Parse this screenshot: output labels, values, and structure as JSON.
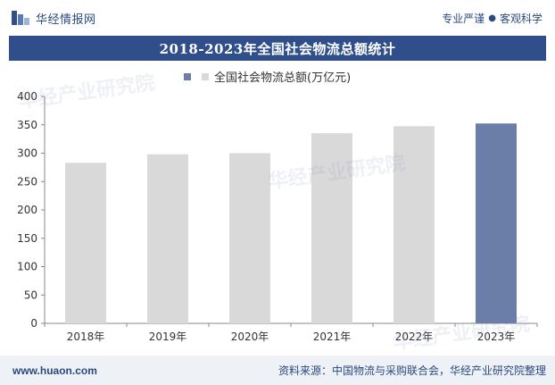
{
  "header": {
    "brand_name": "华经情报网",
    "slogan_left": "专业严谨",
    "slogan_dot": "●",
    "slogan_right": "客观科学"
  },
  "chart_data": {
    "type": "bar",
    "title": "2018-2023年全国社会物流总额统计",
    "categories": [
      "2018年",
      "2019年",
      "2020年",
      "2021年",
      "2022年",
      "2023年"
    ],
    "series": [
      {
        "name": "全国社会物流总额(万亿元)",
        "values": [
          283.1,
          298.0,
          300.1,
          335.2,
          347.6,
          352.4
        ]
      }
    ],
    "ylim": [
      0,
      400
    ],
    "yticks": [
      0,
      50,
      100,
      150,
      200,
      250,
      300,
      350,
      400
    ],
    "legend_position": "top",
    "grid": false,
    "colors": {
      "default": "#d9d9d9",
      "highlight": "#6b7ea7"
    },
    "highlight_index": 5
  },
  "footer": {
    "url": "www.huaon.com",
    "source": "资料来源：中国物流与采购联合会，华经产业研究院整理"
  }
}
